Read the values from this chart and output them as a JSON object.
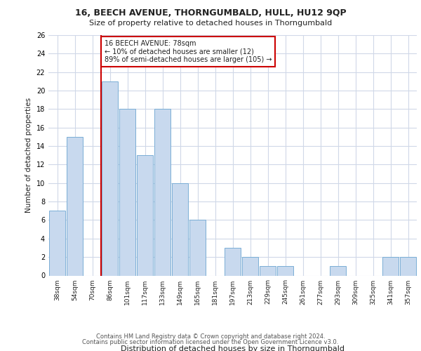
{
  "title1": "16, BEECH AVENUE, THORNGUMBALD, HULL, HU12 9QP",
  "title2": "Size of property relative to detached houses in Thorngumbald",
  "xlabel": "Distribution of detached houses by size in Thorngumbald",
  "ylabel": "Number of detached properties",
  "annotation_line1": "16 BEECH AVENUE: 78sqm",
  "annotation_line2": "← 10% of detached houses are smaller (12)",
  "annotation_line3": "89% of semi-detached houses are larger (105) →",
  "categories": [
    "38sqm",
    "54sqm",
    "70sqm",
    "86sqm",
    "101sqm",
    "117sqm",
    "133sqm",
    "149sqm",
    "165sqm",
    "181sqm",
    "197sqm",
    "213sqm",
    "229sqm",
    "245sqm",
    "261sqm",
    "277sqm",
    "293sqm",
    "309sqm",
    "325sqm",
    "341sqm",
    "357sqm"
  ],
  "values": [
    7,
    15,
    0,
    21,
    18,
    13,
    18,
    10,
    6,
    0,
    3,
    2,
    1,
    1,
    0,
    0,
    1,
    0,
    0,
    2,
    2
  ],
  "bar_color_normal": "#c8d9ee",
  "bar_color_edge": "#7aaed6",
  "vline_color": "#cc0000",
  "annotation_box_color": "#cc0000",
  "background_color": "#ffffff",
  "grid_color": "#d0d8e8",
  "ylim": [
    0,
    26
  ],
  "yticks": [
    0,
    2,
    4,
    6,
    8,
    10,
    12,
    14,
    16,
    18,
    20,
    22,
    24,
    26
  ],
  "footnote1": "Contains HM Land Registry data © Crown copyright and database right 2024.",
  "footnote2": "Contains public sector information licensed under the Open Government Licence v3.0.",
  "vline_x_index": 2.5
}
